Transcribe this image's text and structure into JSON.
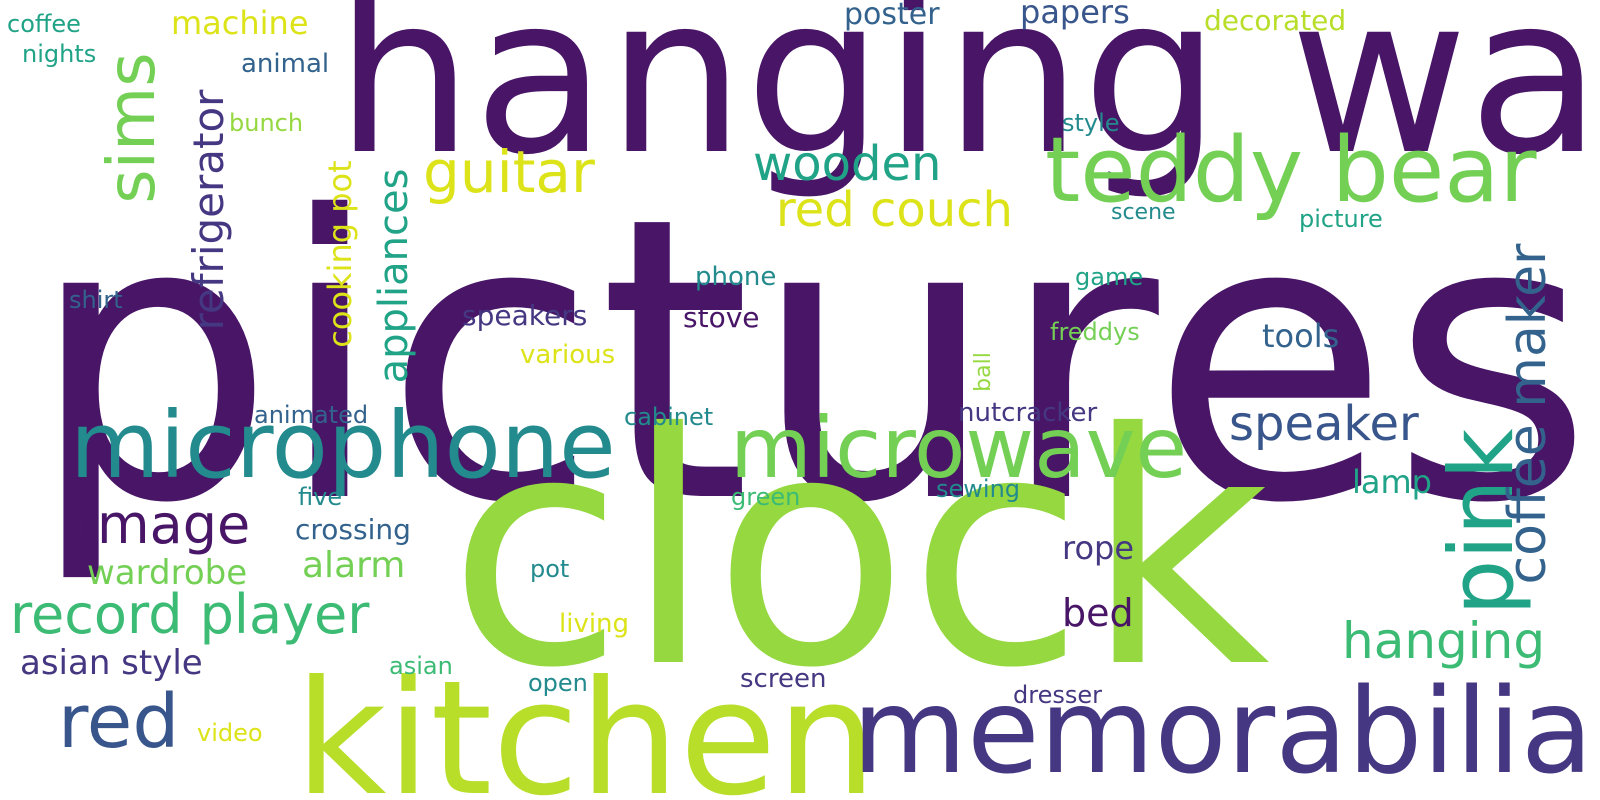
{
  "words": {
    "pictures": "pictures",
    "hanging_wall": "hanging wall",
    "clock": "clock",
    "kitchen": "kitchen",
    "memorabilia": "memorabilia",
    "microphone": "microphone",
    "microwave": "microwave",
    "teddy_bear": "teddy bear",
    "pink": "pink",
    "coffee_maker": "coffee maker",
    "sims": "sims",
    "refrigerator": "refrigerator",
    "appliances": "appliances",
    "cooking_pot": "cooking pot",
    "guitar": "guitar",
    "wooden": "wooden",
    "red_couch": "red couch",
    "red": "red",
    "record_player": "record player",
    "image": "image",
    "speaker": "speaker",
    "hanging": "hanging",
    "asian_style": "asian style",
    "wardrobe": "wardrobe",
    "alarm": "alarm",
    "bed": "bed",
    "rope": "rope",
    "tools": "tools",
    "lamp": "lamp",
    "machine": "machine",
    "coffee": "coffee",
    "nights": "nights",
    "animal": "animal",
    "bunch": "bunch",
    "poster": "poster",
    "papers": "papers",
    "decorated": "decorated",
    "style": "style",
    "scene": "scene",
    "picture": "picture",
    "phone": "phone",
    "game": "game",
    "shirt": "shirt",
    "speakers": "speakers",
    "stove": "stove",
    "freddys": "freddys",
    "various": "various",
    "ball": "ball",
    "animated": "animated",
    "cabinet": "cabinet",
    "nutcracker": "nutcracker",
    "five": "five",
    "green": "green",
    "sewing": "sewing",
    "crossing": "crossing",
    "pot": "pot",
    "living": "living",
    "asian": "asian",
    "open": "open",
    "screen": "screen",
    "dresser": "dresser",
    "video": "video"
  },
  "colors": {
    "background": "#ffffff",
    "dark_purple": "#481567",
    "indigo": "#453781",
    "blue": "#33638d",
    "slate_blue": "#39568c",
    "teal": "#238a8d",
    "green_teal": "#20a386",
    "green": "#3cbb75",
    "light_green": "#73d055",
    "lime": "#95d840",
    "yellow_green": "#b8de29",
    "yellow": "#dce319"
  }
}
